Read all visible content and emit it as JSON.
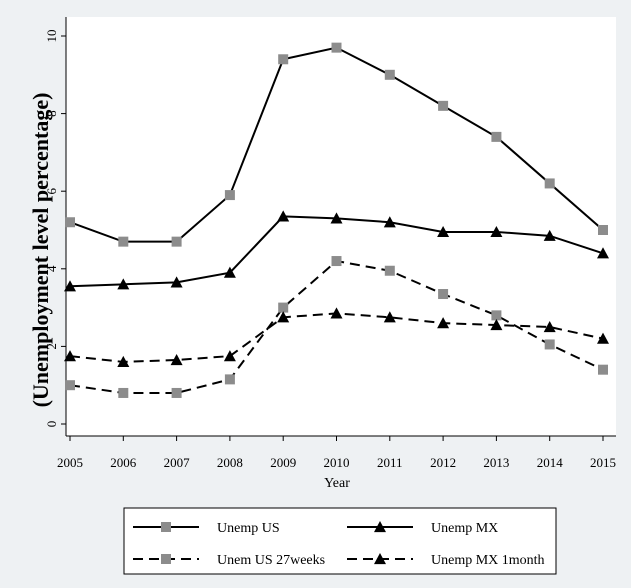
{
  "chart_data": {
    "type": "line",
    "ylabel": "(Unemployment level percentage)",
    "xlabel": "Year",
    "x": [
      2005,
      2006,
      2007,
      2008,
      2009,
      2010,
      2011,
      2012,
      2013,
      2014,
      2015
    ],
    "xlim": [
      2005,
      2015
    ],
    "ylim": [
      0,
      10
    ],
    "yticks": [
      0,
      2,
      4,
      6,
      8,
      10
    ],
    "grid": false,
    "legend_position": "bottom",
    "series": [
      {
        "name": "Unemp US",
        "marker": "square",
        "dash": "solid",
        "color": "#000000",
        "marker_color": "#8c8c8c",
        "values": [
          5.2,
          4.7,
          4.7,
          5.9,
          9.4,
          9.7,
          9.0,
          8.2,
          7.4,
          6.2,
          5.0
        ]
      },
      {
        "name": "Unemp MX",
        "marker": "triangle",
        "dash": "solid",
        "color": "#000000",
        "marker_color": "#000000",
        "values": [
          3.55,
          3.6,
          3.65,
          3.9,
          5.35,
          5.3,
          5.2,
          4.95,
          4.95,
          4.85,
          4.4
        ]
      },
      {
        "name": "Unem US 27weeks",
        "marker": "square",
        "dash": "dashed",
        "color": "#000000",
        "marker_color": "#8c8c8c",
        "values": [
          1.0,
          0.8,
          0.8,
          1.15,
          3.0,
          4.2,
          3.95,
          3.35,
          2.8,
          2.05,
          1.4
        ]
      },
      {
        "name": "Unemp MX 1month",
        "marker": "triangle",
        "dash": "dashed",
        "color": "#000000",
        "marker_color": "#000000",
        "values": [
          1.75,
          1.6,
          1.65,
          1.75,
          2.75,
          2.85,
          2.75,
          2.6,
          2.55,
          2.5,
          2.2
        ]
      }
    ]
  }
}
